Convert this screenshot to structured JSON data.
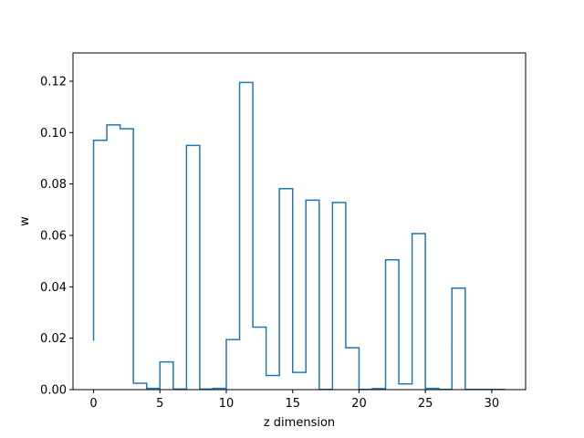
{
  "chart_data": {
    "type": "step",
    "title": "",
    "xlabel": "z dimension",
    "ylabel": "w",
    "xlim": [
      -1.55,
      32.55
    ],
    "ylim": [
      0,
      0.131
    ],
    "xticks": [
      0,
      5,
      10,
      15,
      20,
      25,
      30
    ],
    "yticks": [
      0.0,
      0.02,
      0.04,
      0.06,
      0.08,
      0.1,
      0.12
    ],
    "ytick_labels": [
      "0.00",
      "0.02",
      "0.04",
      "0.06",
      "0.08",
      "0.10",
      "0.12"
    ],
    "grid": false,
    "series": [
      {
        "line_color": "#1f77b4",
        "x": [
          0,
          1,
          2,
          3,
          4,
          5,
          6,
          7,
          8,
          9,
          10,
          11,
          12,
          13,
          14,
          15,
          16,
          17,
          18,
          19,
          20,
          21,
          22,
          23,
          24,
          25,
          26,
          27,
          28,
          29,
          30,
          31
        ],
        "values": [
          0.019,
          0.097,
          0.103,
          0.1015,
          0.0025,
          0.0005,
          0.0108,
          0.0002,
          0.095,
          0.0002,
          0.0005,
          0.0195,
          0.1195,
          0.0243,
          0.0055,
          0.0782,
          0.0067,
          0.0737,
          0.0001,
          0.0728,
          0.0163,
          0.0001,
          0.0004,
          0.0505,
          0.0022,
          0.0607,
          0.0005,
          0.0001,
          0.0395,
          0.0001,
          0.0001,
          0.0001
        ]
      }
    ]
  }
}
